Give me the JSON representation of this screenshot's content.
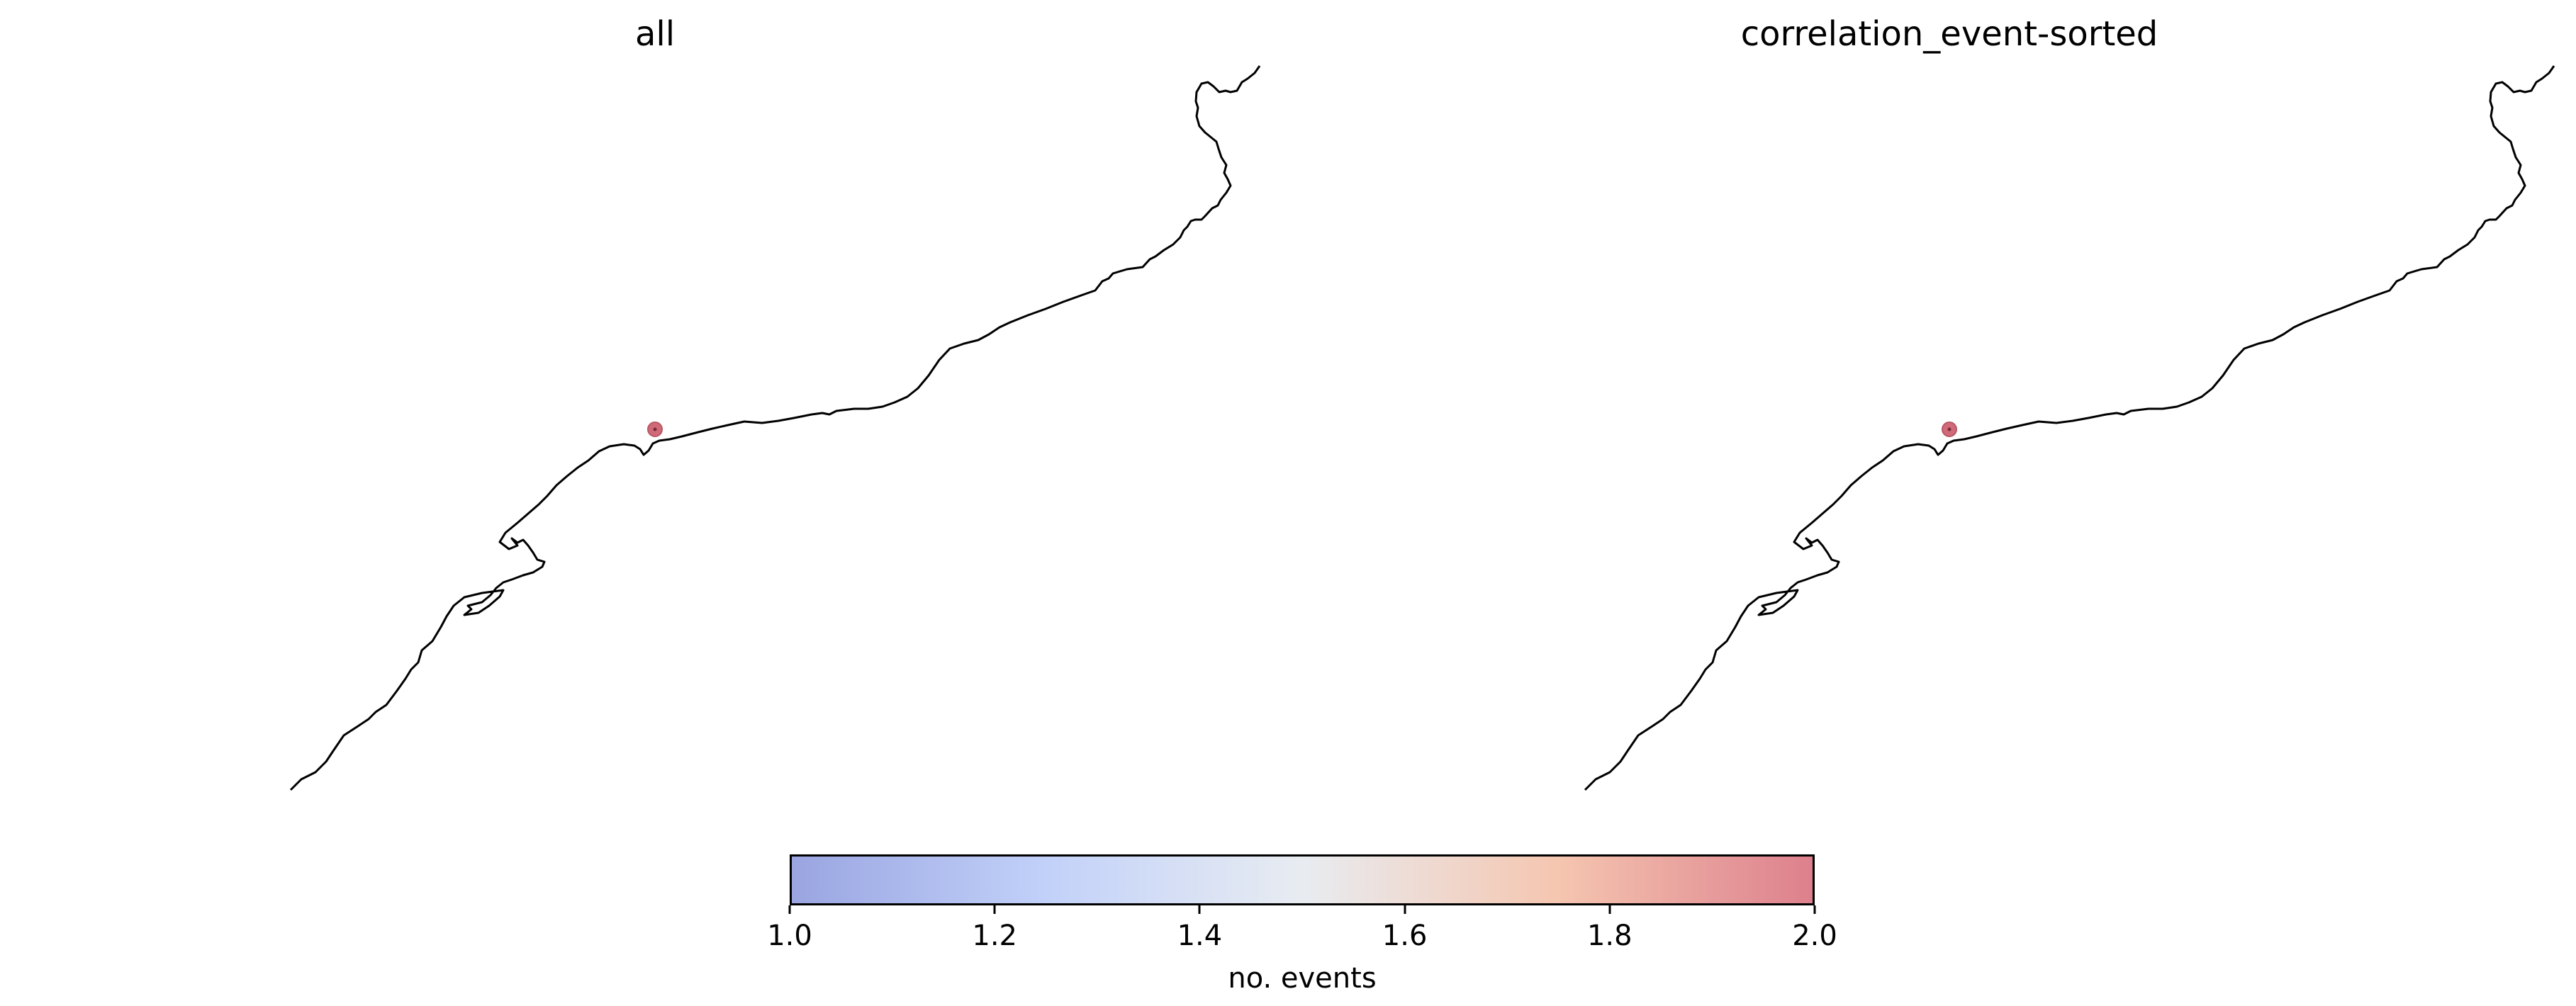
{
  "panels": [
    {
      "title": "all",
      "events": [
        {
          "value": 2.0
        }
      ]
    },
    {
      "title": "correlation_event-sorted",
      "events": [
        {
          "value": 2.0
        }
      ]
    }
  ],
  "colorbar": {
    "label": "no. events",
    "min": 1.0,
    "max": 2.0,
    "ticks": [
      "1.0",
      "1.2",
      "1.4",
      "1.6",
      "1.8",
      "2.0"
    ],
    "colormap": "coolwarm",
    "colors": {
      "low": "#9aa5e1",
      "mid": "#e8ecf1",
      "high": "#dd808d"
    }
  },
  "marker_color": "#d06a78",
  "coastline_color": "#000000"
}
